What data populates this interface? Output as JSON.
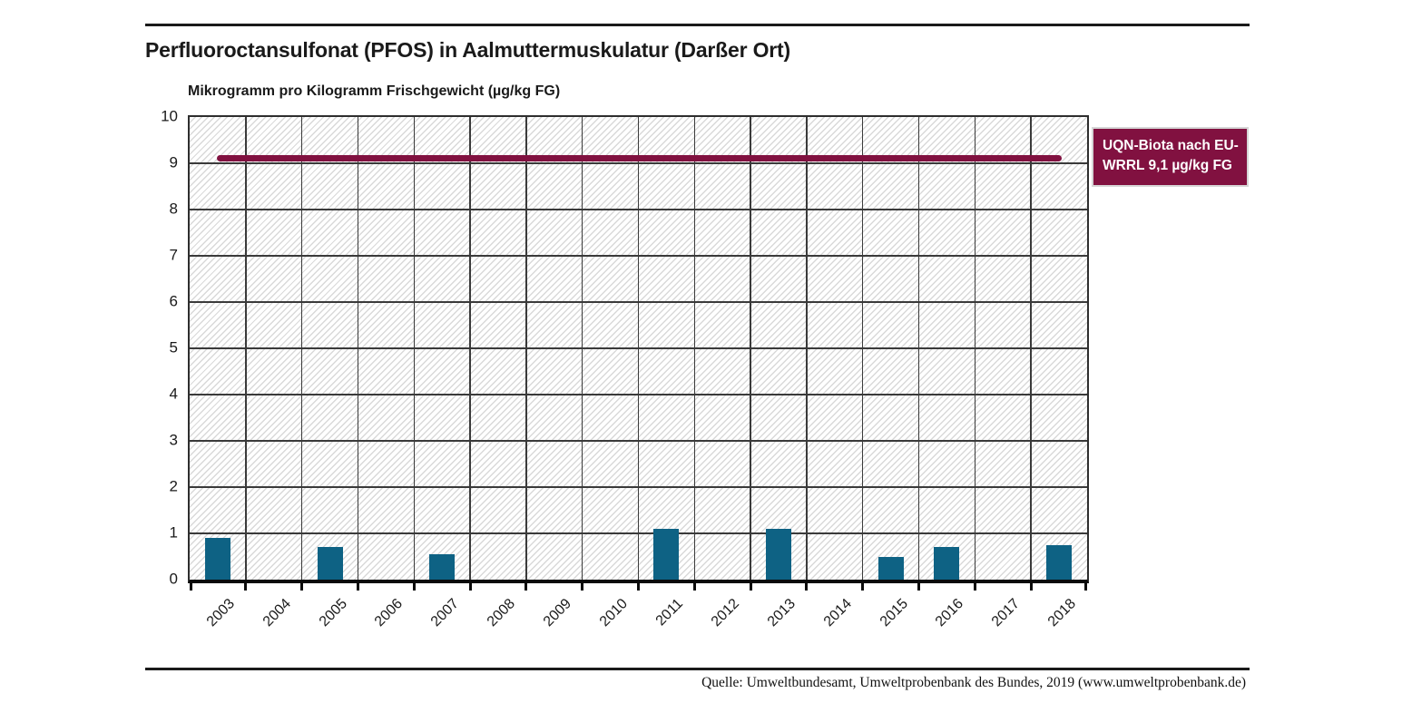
{
  "title": "Perfluoroctansulfonat (PFOS) in Aalmuttermuskulatur (Darßer Ort)",
  "subtitle": "Mikrogramm pro Kilogramm Frischgewicht (µg/kg FG)",
  "legend": {
    "line1": "UQN-Biota nach EU-",
    "line2": "WRRL 9,1 µg/kg FG"
  },
  "footer": {
    "source": "Quelle: Umweltbundesamt, Umweltprobenbank des Bundes, 2019 (www.umweltprobenbank.de)"
  },
  "colors": {
    "bar": "#0E6284",
    "reference": "#811140",
    "grid": "#3A3A3A",
    "hatch": "#D9D9D9",
    "legend_text": "#FFFFFF"
  },
  "chart_data": {
    "type": "bar",
    "title": "Perfluoroctansulfonat (PFOS) in Aalmuttermuskulatur (Darßer Ort)",
    "ylabel": "Mikrogramm pro Kilogramm Frischgewicht (µg/kg FG)",
    "xlabel": "",
    "categories": [
      "2003",
      "2004",
      "2005",
      "2006",
      "2007",
      "2008",
      "2009",
      "2010",
      "2011",
      "2012",
      "2013",
      "2014",
      "2015",
      "2016",
      "2017",
      "2018"
    ],
    "values": [
      0.9,
      null,
      0.7,
      null,
      0.55,
      null,
      null,
      null,
      1.1,
      null,
      1.1,
      null,
      0.5,
      0.7,
      null,
      0.75
    ],
    "ylim": [
      0,
      10
    ],
    "yticks": [
      0,
      1,
      2,
      3,
      4,
      5,
      6,
      7,
      8,
      9,
      10
    ],
    "grid": true,
    "background_hatch": "diagonal",
    "legend_position": "right",
    "reference_line": {
      "value": 9.1,
      "label": "UQN-Biota nach EU-WRRL 9,1 µg/kg FG",
      "color": "#811140"
    },
    "bar_color": "#0E6284"
  }
}
